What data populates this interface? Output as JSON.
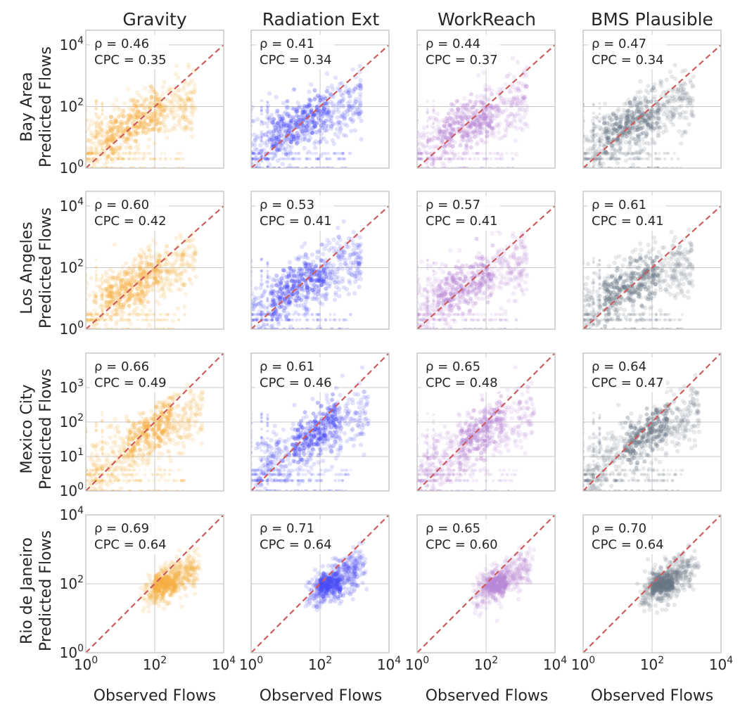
{
  "figure": {
    "col_titles": [
      "Gravity",
      "Radiation Ext",
      "WorkReach",
      "BMS Plausible"
    ],
    "row_titles": [
      "Bay Area",
      "Los Angeles",
      "Mexico City",
      "Rio de Janeiro"
    ],
    "ylabel": "Predicted Flows",
    "xlabel": "Observed Flows"
  },
  "chart_data": [
    {
      "row": 0,
      "col": 0,
      "type": "scatter",
      "model": "Gravity",
      "region": "Bay Area",
      "rho_label": "ρ = 0.46",
      "cpc_label": "CPC = 0.35",
      "xscale": "log",
      "yscale": "log",
      "xlim": [
        1,
        10000
      ],
      "ylim": [
        1,
        30000
      ],
      "yticks": [
        1,
        100,
        10000
      ],
      "ytick_labels": [
        "10^0",
        "10^2",
        "10^4"
      ],
      "xticks": [
        1,
        100,
        10000
      ],
      "xtick_labels": [],
      "color": "#f5b041",
      "ref_line": "y = x"
    },
    {
      "row": 0,
      "col": 1,
      "type": "scatter",
      "model": "Radiation Ext",
      "region": "Bay Area",
      "rho_label": "ρ = 0.41",
      "cpc_label": "CPC = 0.34",
      "xscale": "log",
      "yscale": "log",
      "xlim": [
        1,
        10000
      ],
      "ylim": [
        1,
        30000
      ],
      "yticks": [
        1,
        100,
        10000
      ],
      "ytick_labels": [],
      "xticks": [
        1,
        100,
        10000
      ],
      "xtick_labels": [],
      "color": "#4b4cf5",
      "ref_line": "y = x"
    },
    {
      "row": 0,
      "col": 2,
      "type": "scatter",
      "model": "WorkReach",
      "region": "Bay Area",
      "rho_label": "ρ = 0.44",
      "cpc_label": "CPC = 0.37",
      "xscale": "log",
      "yscale": "log",
      "xlim": [
        1,
        10000
      ],
      "ylim": [
        1,
        30000
      ],
      "yticks": [
        1,
        100,
        10000
      ],
      "ytick_labels": [],
      "xticks": [
        1,
        100,
        10000
      ],
      "xtick_labels": [],
      "color": "#b888d6",
      "ref_line": "y = x"
    },
    {
      "row": 0,
      "col": 3,
      "type": "scatter",
      "model": "BMS Plausible",
      "region": "Bay Area",
      "rho_label": "ρ = 0.47",
      "cpc_label": "CPC = 0.34",
      "xscale": "log",
      "yscale": "log",
      "xlim": [
        1,
        10000
      ],
      "ylim": [
        1,
        30000
      ],
      "yticks": [
        1,
        100,
        10000
      ],
      "ytick_labels": [],
      "xticks": [
        1,
        100,
        10000
      ],
      "xtick_labels": [],
      "color": "#687683",
      "ref_line": "y = x"
    },
    {
      "row": 1,
      "col": 0,
      "type": "scatter",
      "model": "Gravity",
      "region": "Los Angeles",
      "rho_label": "ρ = 0.60",
      "cpc_label": "CPC = 0.42",
      "xscale": "log",
      "yscale": "log",
      "xlim": [
        1,
        10000
      ],
      "ylim": [
        1,
        30000
      ],
      "yticks": [
        1,
        100,
        10000
      ],
      "ytick_labels": [
        "10^0",
        "10^2",
        "10^4"
      ],
      "xticks": [
        1,
        100,
        10000
      ],
      "xtick_labels": [],
      "color": "#f5b041",
      "ref_line": "y = x"
    },
    {
      "row": 1,
      "col": 1,
      "type": "scatter",
      "model": "Radiation Ext",
      "region": "Los Angeles",
      "rho_label": "ρ = 0.53",
      "cpc_label": "CPC = 0.41",
      "xscale": "log",
      "yscale": "log",
      "xlim": [
        1,
        10000
      ],
      "ylim": [
        1,
        30000
      ],
      "yticks": [
        1,
        100,
        10000
      ],
      "ytick_labels": [],
      "xticks": [
        1,
        100,
        10000
      ],
      "xtick_labels": [],
      "color": "#4b4cf5",
      "ref_line": "y = x"
    },
    {
      "row": 1,
      "col": 2,
      "type": "scatter",
      "model": "WorkReach",
      "region": "Los Angeles",
      "rho_label": "ρ = 0.57",
      "cpc_label": "CPC = 0.41",
      "xscale": "log",
      "yscale": "log",
      "xlim": [
        1,
        10000
      ],
      "ylim": [
        1,
        30000
      ],
      "yticks": [
        1,
        100,
        10000
      ],
      "ytick_labels": [],
      "xticks": [
        1,
        100,
        10000
      ],
      "xtick_labels": [],
      "color": "#b888d6",
      "ref_line": "y = x"
    },
    {
      "row": 1,
      "col": 3,
      "type": "scatter",
      "model": "BMS Plausible",
      "region": "Los Angeles",
      "rho_label": "ρ = 0.61",
      "cpc_label": "CPC = 0.41",
      "xscale": "log",
      "yscale": "log",
      "xlim": [
        1,
        10000
      ],
      "ylim": [
        1,
        30000
      ],
      "yticks": [
        1,
        100,
        10000
      ],
      "ytick_labels": [],
      "xticks": [
        1,
        100,
        10000
      ],
      "xtick_labels": [],
      "color": "#687683",
      "ref_line": "y = x"
    },
    {
      "row": 2,
      "col": 0,
      "type": "scatter",
      "model": "Gravity",
      "region": "Mexico City",
      "rho_label": "ρ = 0.66",
      "cpc_label": "CPC = 0.49",
      "xscale": "log",
      "yscale": "log",
      "xlim": [
        1,
        10000
      ],
      "ylim": [
        1,
        10000
      ],
      "yticks": [
        1,
        10,
        100,
        1000
      ],
      "ytick_labels": [
        "10^0",
        "10^1",
        "10^2",
        "10^3"
      ],
      "xticks": [
        1,
        100,
        10000
      ],
      "xtick_labels": [],
      "color": "#f5b041",
      "ref_line": "y = x"
    },
    {
      "row": 2,
      "col": 1,
      "type": "scatter",
      "model": "Radiation Ext",
      "region": "Mexico City",
      "rho_label": "ρ = 0.61",
      "cpc_label": "CPC = 0.46",
      "xscale": "log",
      "yscale": "log",
      "xlim": [
        1,
        10000
      ],
      "ylim": [
        1,
        10000
      ],
      "yticks": [
        1,
        10,
        100,
        1000
      ],
      "ytick_labels": [],
      "xticks": [
        1,
        100,
        10000
      ],
      "xtick_labels": [],
      "color": "#4b4cf5",
      "ref_line": "y = x"
    },
    {
      "row": 2,
      "col": 2,
      "type": "scatter",
      "model": "WorkReach",
      "region": "Mexico City",
      "rho_label": "ρ = 0.65",
      "cpc_label": "CPC = 0.48",
      "xscale": "log",
      "yscale": "log",
      "xlim": [
        1,
        10000
      ],
      "ylim": [
        1,
        10000
      ],
      "yticks": [
        1,
        10,
        100,
        1000
      ],
      "ytick_labels": [],
      "xticks": [
        1,
        100,
        10000
      ],
      "xtick_labels": [],
      "color": "#b888d6",
      "ref_line": "y = x"
    },
    {
      "row": 2,
      "col": 3,
      "type": "scatter",
      "model": "BMS Plausible",
      "region": "Mexico City",
      "rho_label": "ρ = 0.64",
      "cpc_label": "CPC = 0.47",
      "xscale": "log",
      "yscale": "log",
      "xlim": [
        1,
        10000
      ],
      "ylim": [
        1,
        10000
      ],
      "yticks": [
        1,
        10,
        100,
        1000
      ],
      "ytick_labels": [],
      "xticks": [
        1,
        100,
        10000
      ],
      "xtick_labels": [],
      "color": "#687683",
      "ref_line": "y = x"
    },
    {
      "row": 3,
      "col": 0,
      "type": "scatter",
      "model": "Gravity",
      "region": "Rio de Janeiro",
      "rho_label": "ρ = 0.69",
      "cpc_label": "CPC = 0.64",
      "xscale": "log",
      "yscale": "log",
      "xlim": [
        1,
        10000
      ],
      "ylim": [
        1,
        10000
      ],
      "yticks": [
        1,
        100,
        10000
      ],
      "ytick_labels": [
        "10^0",
        "10^2",
        "10^4"
      ],
      "xticks": [
        1,
        100,
        10000
      ],
      "xtick_labels": [
        "10^0",
        "10^2",
        "10^4"
      ],
      "color": "#f5b041",
      "ref_line": "y = x"
    },
    {
      "row": 3,
      "col": 1,
      "type": "scatter",
      "model": "Radiation Ext",
      "region": "Rio de Janeiro",
      "rho_label": "ρ = 0.71",
      "cpc_label": "CPC = 0.64",
      "xscale": "log",
      "yscale": "log",
      "xlim": [
        1,
        10000
      ],
      "ylim": [
        1,
        10000
      ],
      "yticks": [
        1,
        100,
        10000
      ],
      "ytick_labels": [],
      "xticks": [
        1,
        100,
        10000
      ],
      "xtick_labels": [
        "10^0",
        "10^2",
        "10^4"
      ],
      "color": "#4b4cf5",
      "ref_line": "y = x"
    },
    {
      "row": 3,
      "col": 2,
      "type": "scatter",
      "model": "WorkReach",
      "region": "Rio de Janeiro",
      "rho_label": "ρ = 0.65",
      "cpc_label": "CPC = 0.60",
      "xscale": "log",
      "yscale": "log",
      "xlim": [
        1,
        10000
      ],
      "ylim": [
        1,
        10000
      ],
      "yticks": [
        1,
        100,
        10000
      ],
      "ytick_labels": [],
      "xticks": [
        1,
        100,
        10000
      ],
      "xtick_labels": [
        "10^0",
        "10^2",
        "10^4"
      ],
      "color": "#b888d6",
      "ref_line": "y = x"
    },
    {
      "row": 3,
      "col": 3,
      "type": "scatter",
      "model": "BMS Plausible",
      "region": "Rio de Janeiro",
      "rho_label": "ρ = 0.70",
      "cpc_label": "CPC = 0.64",
      "xscale": "log",
      "yscale": "log",
      "xlim": [
        1,
        10000
      ],
      "ylim": [
        1,
        10000
      ],
      "yticks": [
        1,
        100,
        10000
      ],
      "ytick_labels": [],
      "xticks": [
        1,
        100,
        10000
      ],
      "xtick_labels": [
        "10^0",
        "10^2",
        "10^4"
      ],
      "color": "#687683",
      "ref_line": "y = x"
    }
  ]
}
